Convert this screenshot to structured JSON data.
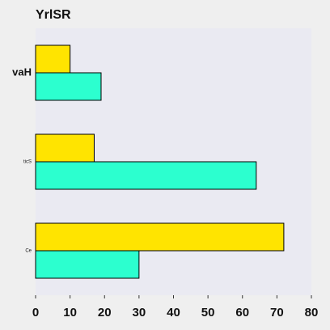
{
  "chart_data": {
    "type": "bar",
    "orientation": "horizontal",
    "title": "YrlSR",
    "xlabel": "",
    "ylabel": "",
    "categories": [
      "vaH",
      "ticS",
      "Ce"
    ],
    "series": [
      {
        "values": [
          10,
          17,
          72
        ],
        "color": "#ffe400"
      },
      {
        "values": [
          19,
          64,
          30
        ],
        "color": "#2cffcf"
      }
    ],
    "xlim": [
      0,
      80
    ],
    "xticks": [
      0,
      10,
      20,
      30,
      40,
      50,
      60,
      70,
      80
    ],
    "grid": false,
    "legend": "none",
    "plot_background": "#eaeaf2"
  }
}
